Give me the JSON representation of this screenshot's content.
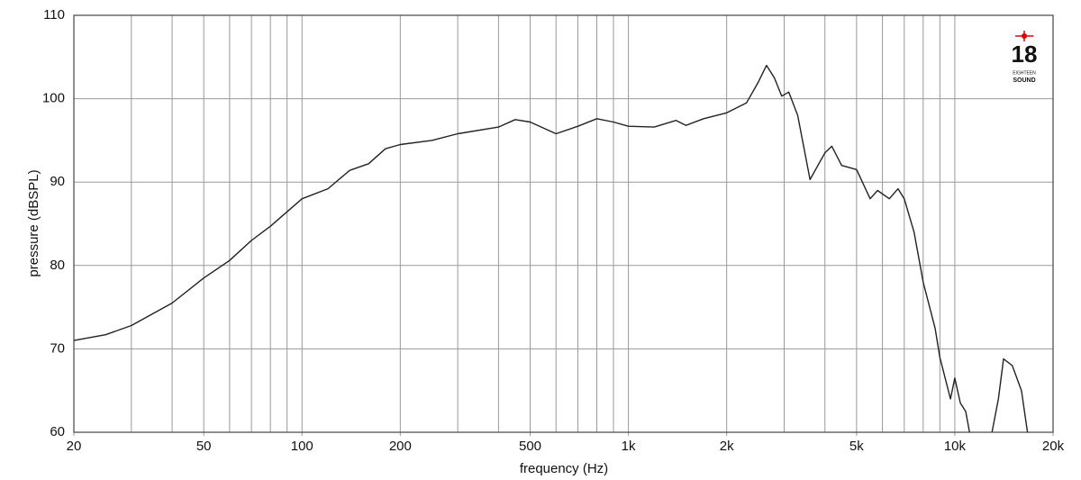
{
  "chart_data": {
    "type": "line",
    "x_label": "frequency (Hz)",
    "y_label": "pressure (dBSPL)",
    "log_x": true,
    "grid": true,
    "xlim": [
      20,
      20000
    ],
    "ylim": [
      60,
      110
    ],
    "yticks": [
      60,
      70,
      80,
      90,
      100,
      110
    ],
    "xticks": [
      20,
      50,
      100,
      200,
      500,
      {
        "value": 1000,
        "label": "1k"
      },
      {
        "value": 2000,
        "label": "2k"
      },
      {
        "value": 5000,
        "label": "5k"
      },
      {
        "value": 10000,
        "label": "10k"
      },
      {
        "value": 20000,
        "label": "20k"
      }
    ],
    "xgrid": [
      30,
      40,
      50,
      60,
      70,
      80,
      90,
      100,
      200,
      300,
      400,
      500,
      600,
      700,
      800,
      900,
      1000,
      2000,
      3000,
      4000,
      5000,
      6000,
      7000,
      8000,
      9000,
      10000
    ],
    "x": [
      20,
      25,
      30,
      40,
      50,
      60,
      70,
      80,
      100,
      120,
      140,
      160,
      180,
      200,
      250,
      300,
      400,
      450,
      500,
      600,
      700,
      800,
      900,
      1000,
      1200,
      1400,
      1500,
      1700,
      2000,
      2300,
      2500,
      2650,
      2800,
      2950,
      3100,
      3300,
      3600,
      4000,
      4200,
      4500,
      5000,
      5500,
      5800,
      6300,
      6700,
      7000,
      7500,
      8000,
      8700,
      9000,
      9700,
      10000,
      10400,
      10800,
      11100,
      12000,
      13000,
      13600,
      14100,
      15000,
      16000,
      16700
    ],
    "series": [
      {
        "color": "#222222",
        "values": [
          71,
          71.7,
          72.8,
          75.5,
          78.5,
          80.6,
          83,
          84.7,
          88,
          89.2,
          91.4,
          92.2,
          94,
          94.5,
          95,
          95.8,
          96.6,
          97.5,
          97.2,
          95.8,
          96.7,
          97.6,
          97.2,
          96.7,
          96.6,
          97.4,
          96.8,
          97.6,
          98.3,
          99.5,
          102,
          104,
          102.5,
          100.3,
          100.8,
          98,
          90.3,
          93.5,
          94.3,
          92,
          91.5,
          88,
          89,
          88,
          89.2,
          88,
          84,
          78,
          72.5,
          69,
          64,
          66.5,
          63.5,
          62.5,
          60,
          null,
          60,
          64,
          68.8,
          68,
          65,
          60
        ]
      }
    ]
  },
  "logo": {
    "number": "18",
    "line1": "EIGHTEEN",
    "line2": "SOUND"
  }
}
